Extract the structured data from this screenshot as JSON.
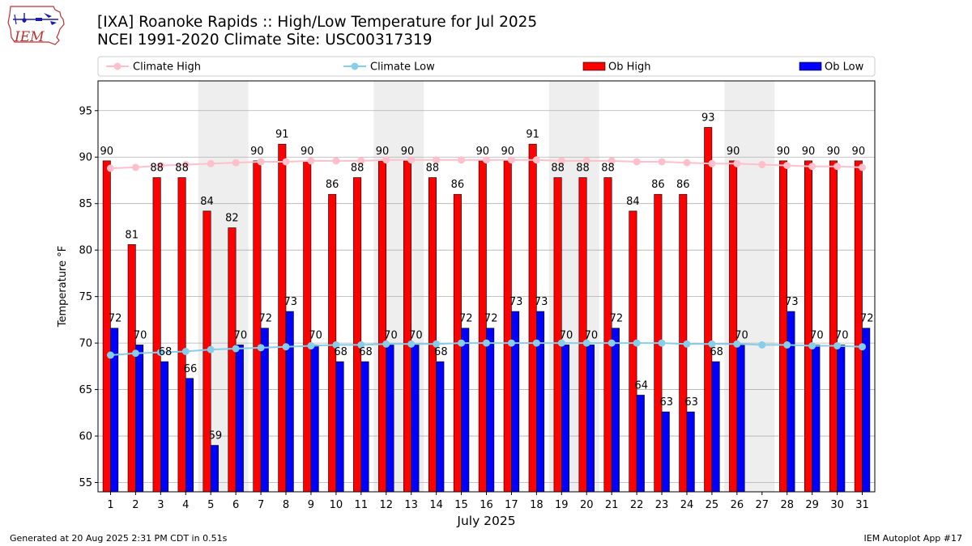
{
  "header": {
    "title_line1": "[IXA] Roanoke Rapids :: High/Low Temperature for Jul 2025",
    "title_line2": "NCEI 1991-2020 Climate Site: USC00317319",
    "logo_text": "IEM"
  },
  "footer": {
    "generated": "Generated at 20 Aug 2025 2:31 PM CDT in 0.51s",
    "app": "IEM Autoplot App #17"
  },
  "colors": {
    "ob_high": "#ff0000",
    "ob_low": "#0000ff",
    "climate_high": "#ffc0cb",
    "climate_low": "#87ceeb",
    "weekend_band": "#eeeeee",
    "grid": "#b0b0b0"
  },
  "chart_data": {
    "type": "bar",
    "xlabel": "July 2025",
    "ylabel": "Temperature °F",
    "ylim": [
      54,
      98.2
    ],
    "yticks": [
      55,
      60,
      65,
      70,
      75,
      80,
      85,
      90,
      95
    ],
    "grid": "horizontal",
    "legend_position": "top",
    "categories": [
      "1",
      "2",
      "3",
      "4",
      "5",
      "6",
      "7",
      "8",
      "9",
      "10",
      "11",
      "12",
      "13",
      "14",
      "15",
      "16",
      "17",
      "18",
      "19",
      "20",
      "21",
      "22",
      "23",
      "24",
      "25",
      "26",
      "27",
      "28",
      "29",
      "30",
      "31"
    ],
    "shaded_day_ranges": [
      [
        5,
        6
      ],
      [
        12,
        13
      ],
      [
        19,
        20
      ],
      [
        26,
        27
      ]
    ],
    "series": [
      {
        "name": "Climate High",
        "kind": "line",
        "values": [
          88.8,
          88.9,
          89.1,
          89.2,
          89.3,
          89.4,
          89.5,
          89.5,
          89.6,
          89.6,
          89.6,
          89.7,
          89.7,
          89.7,
          89.7,
          89.7,
          89.7,
          89.7,
          89.6,
          89.6,
          89.6,
          89.5,
          89.5,
          89.4,
          89.3,
          89.3,
          89.2,
          89.1,
          89.0,
          89.0,
          88.9
        ]
      },
      {
        "name": "Climate Low",
        "kind": "line",
        "values": [
          68.7,
          68.9,
          69.0,
          69.1,
          69.3,
          69.4,
          69.5,
          69.6,
          69.7,
          69.8,
          69.8,
          69.9,
          69.9,
          69.9,
          70.0,
          70.0,
          70.0,
          70.0,
          70.0,
          70.0,
          70.0,
          70.0,
          70.0,
          69.9,
          69.9,
          69.9,
          69.8,
          69.8,
          69.7,
          69.7,
          69.6
        ]
      },
      {
        "name": "Ob High",
        "kind": "bar",
        "values": [
          90,
          81,
          88,
          88,
          84,
          82,
          90,
          91,
          90,
          86,
          88,
          90,
          90,
          88,
          86,
          90,
          90,
          91,
          88,
          88,
          88,
          84,
          86,
          86,
          93,
          90,
          null,
          90,
          90,
          90,
          90
        ],
        "bar_tops": [
          89.6,
          80.6,
          87.8,
          87.8,
          84.2,
          82.4,
          89.6,
          91.4,
          89.6,
          86.0,
          87.8,
          89.6,
          89.6,
          87.8,
          86.0,
          89.6,
          89.6,
          91.4,
          87.8,
          87.8,
          87.8,
          84.2,
          86.0,
          86.0,
          93.2,
          89.6,
          null,
          89.6,
          89.6,
          89.6,
          89.6
        ]
      },
      {
        "name": "Ob Low",
        "kind": "bar",
        "values": [
          72,
          70,
          68,
          66,
          59,
          70,
          72,
          73,
          70,
          68,
          68,
          70,
          70,
          68,
          72,
          72,
          73,
          73,
          70,
          70,
          72,
          64,
          63,
          63,
          68,
          70,
          null,
          73,
          70,
          70,
          72
        ],
        "bar_tops": [
          71.6,
          69.8,
          68.0,
          66.2,
          59.0,
          69.8,
          71.6,
          73.4,
          69.8,
          68.0,
          68.0,
          69.8,
          69.8,
          68.0,
          71.6,
          71.6,
          73.4,
          73.4,
          69.8,
          69.8,
          71.6,
          64.4,
          62.6,
          62.6,
          68.0,
          69.8,
          null,
          73.4,
          69.8,
          69.8,
          71.6
        ]
      }
    ]
  }
}
